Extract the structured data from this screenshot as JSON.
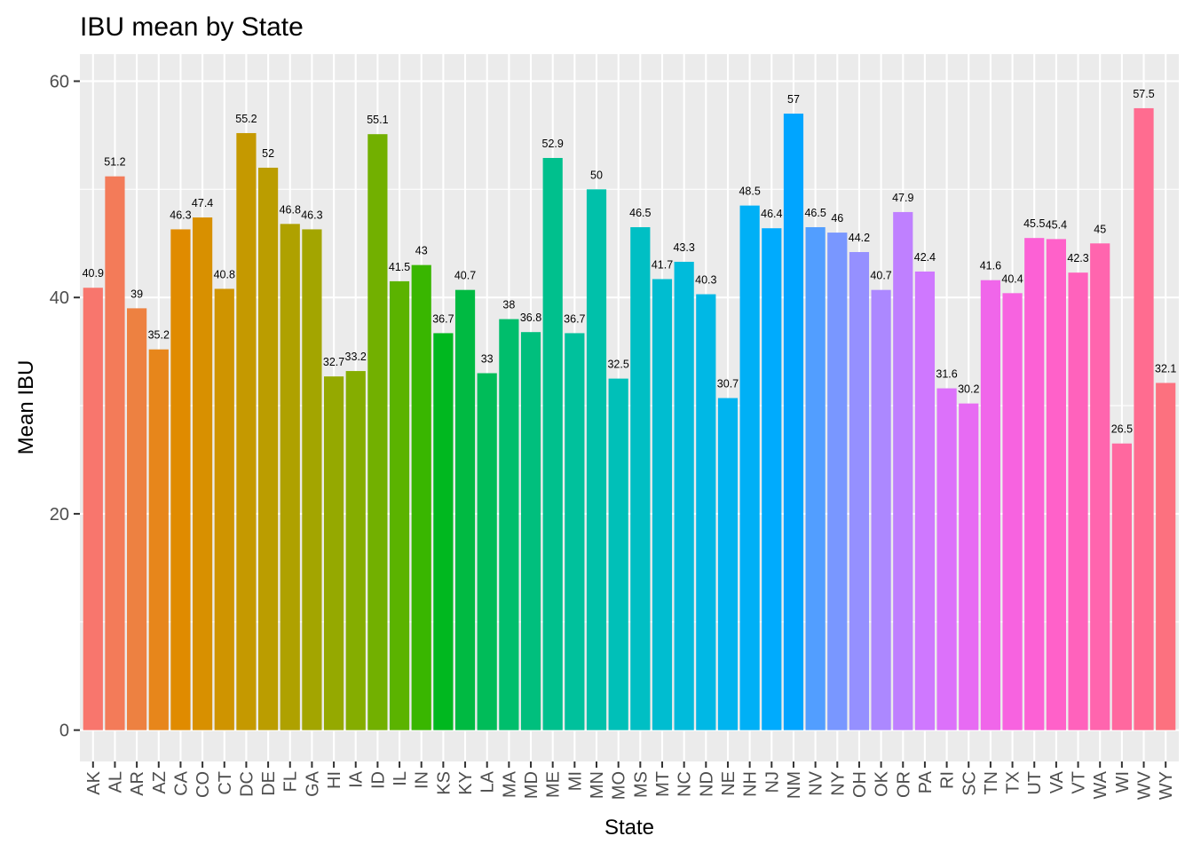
{
  "chart_data": {
    "type": "bar",
    "title": "IBU mean by State",
    "xlabel": "State",
    "ylabel": "Mean IBU",
    "ylim": [
      -2.9,
      62.5
    ],
    "yticks": [
      0,
      20,
      40,
      60
    ],
    "grid": true,
    "legend": "none",
    "categories": [
      "AK",
      "AL",
      "AR",
      "AZ",
      "CA",
      "CO",
      "CT",
      "DC",
      "DE",
      "FL",
      "GA",
      "HI",
      "IA",
      "ID",
      "IL",
      "IN",
      "KS",
      "KY",
      "LA",
      "MA",
      "MD",
      "ME",
      "MI",
      "MN",
      "MO",
      "MS",
      "MT",
      "NC",
      "ND",
      "NE",
      "NH",
      "NJ",
      "NM",
      "NV",
      "NY",
      "OH",
      "OK",
      "OR",
      "PA",
      "RI",
      "SC",
      "TN",
      "TX",
      "UT",
      "VA",
      "VT",
      "WA",
      "WI",
      "WV",
      "WY"
    ],
    "values": [
      40.9,
      51.2,
      39,
      35.2,
      46.3,
      47.4,
      40.8,
      55.2,
      52,
      46.8,
      46.3,
      32.7,
      33.2,
      55.1,
      41.5,
      43,
      36.7,
      40.7,
      33,
      38,
      36.8,
      52.9,
      36.7,
      50,
      32.5,
      46.5,
      41.7,
      43.3,
      40.3,
      30.7,
      48.5,
      46.4,
      57,
      46.5,
      46,
      44.2,
      40.7,
      47.9,
      42.4,
      31.6,
      30.2,
      41.6,
      40.4,
      45.5,
      45.4,
      42.3,
      45,
      26.5,
      57.5,
      32.1
    ],
    "labels": [
      "40.9",
      "51.2",
      "39",
      "35.2",
      "46.3",
      "47.4",
      "40.8",
      "55.2",
      "52",
      "46.8",
      "46.3",
      "32.7",
      "33.2",
      "55.1",
      "41.5",
      "43",
      "36.7",
      "40.7",
      "33",
      "38",
      "36.8",
      "52.9",
      "36.7",
      "50",
      "32.5",
      "46.5",
      "41.7",
      "43.3",
      "40.3",
      "30.7",
      "48.5",
      "46.4",
      "57",
      "46.5",
      "46",
      "44.2",
      "40.7",
      "47.9",
      "42.4",
      "31.6",
      "30.2",
      "41.6",
      "40.4",
      "45.5",
      "45.4",
      "42.3",
      "45",
      "26.5",
      "57.5",
      "32.1"
    ],
    "colors": {
      "panel_background": "#EBEBEB",
      "grid_major": "#FFFFFF",
      "tick": "#333333",
      "palette": "ggplot2 default hue (hcl, h 15-375, c 100, l 65)"
    }
  }
}
